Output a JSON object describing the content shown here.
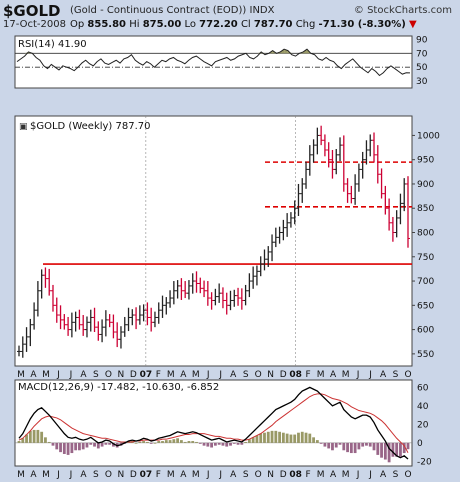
{
  "header": {
    "symbol": "$GOLD",
    "description": "(Gold - Continuous Contract (EOD))",
    "exchange": "INDX",
    "brand": "© StockCharts.com",
    "date": "17-Oct-2008",
    "open_label": "Op",
    "open": "855.80",
    "high_label": "Hi",
    "high": "875.00",
    "low_label": "Lo",
    "low": "772.20",
    "close_label": "Cl",
    "close": "787.70",
    "change_label": "Chg",
    "change": "-71.30 (-8.30%)",
    "down_arrow": "▼"
  },
  "colors": {
    "price": "#cc0033",
    "price_dark": "#222222",
    "support_line": "#dd0000",
    "macd": "#000000",
    "signal": "#cc3333",
    "hist_pos": "#999966",
    "hist_neg": "#996688",
    "rsi_fill": "#999966",
    "background": "#cbd6e8"
  },
  "chart_data": [
    {
      "type": "line",
      "panel": "RSI",
      "title": "RSI(14) 41.90",
      "ylim": [
        20,
        95
      ],
      "yticks": [
        90,
        70,
        50,
        30
      ],
      "reference_lines": [
        70,
        50
      ],
      "y": [
        58,
        62,
        66,
        72,
        70,
        64,
        60,
        52,
        48,
        54,
        50,
        46,
        52,
        50,
        48,
        45,
        50,
        56,
        60,
        55,
        52,
        58,
        62,
        56,
        54,
        57,
        60,
        56,
        62,
        64,
        68,
        60,
        56,
        53,
        58,
        55,
        50,
        55,
        60,
        58,
        62,
        64,
        60,
        58,
        55,
        60,
        64,
        66,
        62,
        58,
        55,
        52,
        58,
        60,
        62,
        64,
        60,
        62,
        66,
        68,
        70,
        64,
        62,
        66,
        72,
        68,
        70,
        74,
        70,
        72,
        76,
        74,
        68,
        66,
        70,
        72,
        76,
        70,
        68,
        62,
        60,
        64,
        60,
        58,
        52,
        48,
        54,
        58,
        62,
        56,
        50,
        46,
        42,
        48,
        44,
        38,
        42,
        48,
        52,
        48,
        44,
        40,
        42,
        41.9
      ]
    },
    {
      "type": "line",
      "panel": "price",
      "title": "$GOLD (Weekly) 787.70",
      "ylim": [
        525,
        1040
      ],
      "yticks": [
        1000,
        950,
        900,
        850,
        800,
        750,
        700,
        650,
        600,
        550
      ],
      "x_labels": [
        "M",
        "A",
        "M",
        "J",
        "J",
        "A",
        "S",
        "O",
        "N",
        "D",
        "07",
        "F",
        "M",
        "A",
        "M",
        "J",
        "J",
        "A",
        "S",
        "O",
        "N",
        "D",
        "08",
        "F",
        "M",
        "A",
        "M",
        "J",
        "J",
        "A",
        "S",
        "O"
      ],
      "support_lines": [
        735
      ],
      "resistance_lines": [
        945,
        853
      ],
      "close": [
        555,
        570,
        585,
        610,
        640,
        680,
        712,
        705,
        680,
        650,
        630,
        620,
        610,
        600,
        615,
        625,
        610,
        600,
        615,
        625,
        605,
        590,
        605,
        620,
        615,
        595,
        580,
        595,
        610,
        625,
        630,
        620,
        630,
        640,
        625,
        615,
        625,
        640,
        650,
        655,
        665,
        680,
        690,
        680,
        675,
        690,
        700,
        695,
        685,
        680,
        665,
        660,
        668,
        675,
        660,
        650,
        660,
        670,
        665,
        660,
        680,
        700,
        710,
        720,
        735,
        745,
        760,
        780,
        790,
        800,
        810,
        820,
        830,
        850,
        880,
        900,
        930,
        960,
        980,
        1000,
        990,
        970,
        950,
        930,
        960,
        980,
        900,
        880,
        870,
        900,
        930,
        950,
        970,
        990,
        960,
        920,
        880,
        850,
        820,
        800,
        830,
        860,
        900,
        787.7
      ]
    },
    {
      "type": "line",
      "panel": "MACD",
      "title": "MACD(12,26,9)",
      "values_text": "-17.482, -10.630, -6.852",
      "ylim": [
        -25,
        68
      ],
      "yticks": [
        60,
        40,
        20,
        0,
        -20
      ],
      "series": [
        {
          "name": "MACD",
          "values": [
            5,
            10,
            18,
            26,
            32,
            36,
            38,
            34,
            30,
            25,
            20,
            15,
            10,
            6,
            5,
            6,
            4,
            3,
            4,
            6,
            3,
            0,
            1,
            3,
            2,
            -1,
            -3,
            -2,
            0,
            2,
            3,
            2,
            3,
            5,
            4,
            2,
            3,
            5,
            6,
            7,
            8,
            10,
            12,
            11,
            10,
            11,
            12,
            11,
            9,
            7,
            5,
            3,
            4,
            5,
            3,
            1,
            2,
            3,
            2,
            1,
            4,
            8,
            12,
            16,
            20,
            24,
            28,
            32,
            36,
            38,
            40,
            42,
            44,
            47,
            52,
            56,
            58,
            60,
            58,
            56,
            52,
            48,
            44,
            40,
            42,
            44,
            36,
            32,
            28,
            26,
            28,
            30,
            30,
            28,
            22,
            14,
            8,
            2,
            -6,
            -10,
            -14,
            -16,
            -14,
            -17.48
          ]
        },
        {
          "name": "Signal",
          "values": [
            3,
            5,
            9,
            13,
            18,
            22,
            26,
            28,
            29,
            28,
            27,
            25,
            22,
            19,
            16,
            14,
            12,
            10,
            9,
            8,
            7,
            6,
            5,
            5,
            4,
            3,
            2,
            1,
            1,
            1,
            1,
            2,
            2,
            3,
            3,
            3,
            3,
            3,
            4,
            4,
            5,
            6,
            7,
            8,
            9,
            9,
            10,
            10,
            10,
            10,
            9,
            8,
            7,
            7,
            6,
            5,
            5,
            4,
            4,
            3,
            3,
            4,
            6,
            8,
            10,
            13,
            16,
            19,
            23,
            26,
            29,
            32,
            35,
            38,
            41,
            44,
            47,
            50,
            52,
            53,
            53,
            52,
            50,
            48,
            47,
            46,
            44,
            42,
            39,
            37,
            35,
            34,
            33,
            32,
            30,
            27,
            24,
            20,
            15,
            10,
            5,
            1,
            -3,
            -10.63
          ]
        }
      ],
      "histogram": [
        2,
        5,
        9,
        13,
        14,
        14,
        12,
        6,
        1,
        -3,
        -7,
        -10,
        -12,
        -13,
        -11,
        -8,
        -8,
        -7,
        -5,
        -2,
        -4,
        -6,
        -4,
        -2,
        -2,
        -4,
        -5,
        -3,
        -1,
        1,
        2,
        0,
        1,
        2,
        1,
        -1,
        0,
        2,
        2,
        3,
        3,
        4,
        5,
        3,
        1,
        2,
        2,
        1,
        -1,
        -3,
        -4,
        -5,
        -3,
        -2,
        -3,
        -4,
        -3,
        -1,
        -2,
        -2,
        1,
        4,
        6,
        8,
        10,
        11,
        12,
        13,
        13,
        12,
        11,
        10,
        9,
        9,
        11,
        12,
        11,
        10,
        6,
        3,
        -1,
        -4,
        -6,
        -8,
        -5,
        -2,
        -8,
        -10,
        -11,
        -11,
        -7,
        -4,
        -3,
        -4,
        -8,
        -13,
        -16,
        -18,
        -21,
        -15,
        -15,
        -15,
        -11,
        -6.85
      ]
    }
  ]
}
